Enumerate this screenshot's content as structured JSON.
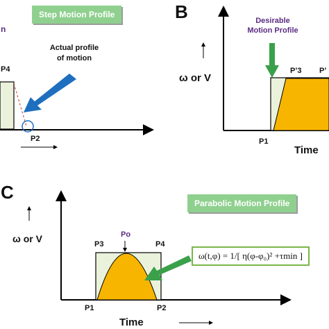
{
  "panel_a": {
    "title": "Step Motion Profile",
    "left_fragment": "n",
    "point_p4": "P4",
    "point_p2": "P2",
    "annotation": "Actual profile of motion"
  },
  "panel_b": {
    "letter": "B",
    "desirable_label": "Desirable Motion Profile",
    "y_label": "ω or V",
    "point_p1": "P1",
    "point_p3": "P’3",
    "point_right": "P’",
    "x_label": "Time"
  },
  "panel_c": {
    "letter": "C",
    "title": "Parabolic Motion Profile",
    "y_label": "ω or V",
    "point_po": "Po",
    "point_p3": "P3",
    "point_p4": "P4",
    "point_p1": "P1",
    "point_p2": "P2",
    "x_label": "Time",
    "equation": "ω(t,φ) = 1/[ η(φ-φ₀)² +τmin ]"
  },
  "colors": {
    "fill_orange": "#f7b500",
    "fill_pale": "#eaf2dc",
    "label_green": "#8fd08f",
    "arrow_blue": "#1f6fbf",
    "arrow_green": "#3aa04a",
    "purple_text": "#5b2c83"
  }
}
